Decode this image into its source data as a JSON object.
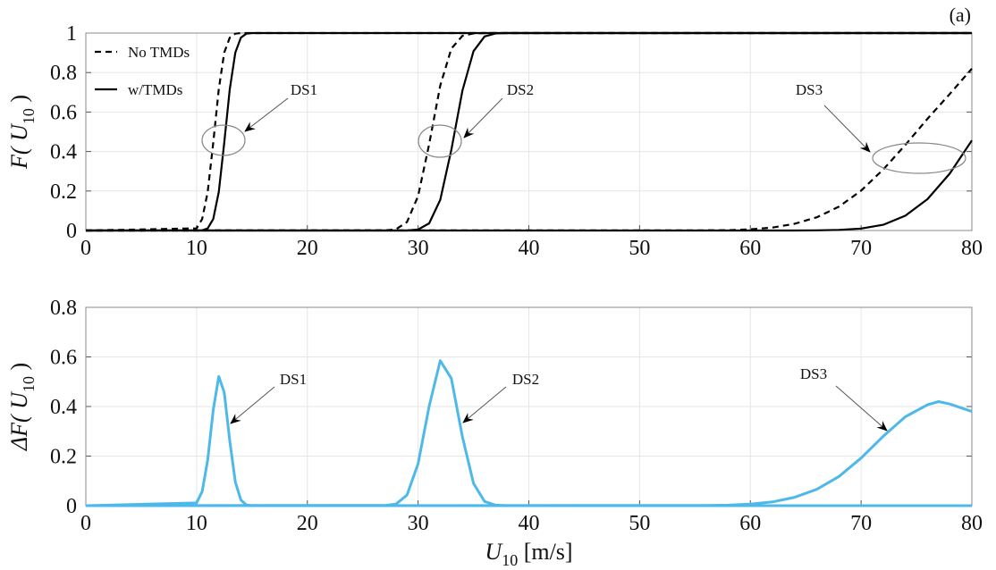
{
  "panel_label": "(a)",
  "chart_data": [
    {
      "type": "line",
      "ylabel": {
        "main": "F( U",
        "sub": "10",
        "end": " )"
      },
      "xlim": [
        0,
        80
      ],
      "ylim": [
        0,
        1
      ],
      "xticks": [
        0,
        10,
        20,
        30,
        40,
        50,
        60,
        70,
        80
      ],
      "yticks": [
        0,
        0.2,
        0.4,
        0.6,
        0.8,
        1
      ],
      "ytick_labels": [
        "0",
        "0.2",
        "0.4",
        "0.6",
        "0.8",
        "1"
      ],
      "grid": true,
      "legend": {
        "placement": "top-left",
        "entries": [
          {
            "label": "No TMDs",
            "style": "dashed"
          },
          {
            "label": "w/TMDs",
            "style": "solid"
          }
        ]
      },
      "line_color": "#000000",
      "series": [
        {
          "name": "No TMDs",
          "group": "DS1",
          "style": "dashed",
          "x": [
            0,
            10,
            10.5,
            11,
            11.5,
            12,
            12.5,
            13,
            13.5,
            14,
            80
          ],
          "y": [
            0,
            0.011,
            0.058,
            0.195,
            0.444,
            0.716,
            0.901,
            0.977,
            0.997,
            1,
            1
          ]
        },
        {
          "name": "w/TMDs",
          "group": "DS1",
          "style": "solid",
          "x": [
            0,
            10.5,
            11,
            11.5,
            12,
            12.5,
            13,
            13.5,
            14,
            14.5,
            15,
            80
          ],
          "y": [
            0,
            0.001,
            0.011,
            0.058,
            0.195,
            0.444,
            0.716,
            0.901,
            0.977,
            0.997,
            1,
            1
          ]
        },
        {
          "name": "No TMDs",
          "group": "DS2",
          "style": "dashed",
          "x": [
            0,
            27,
            28,
            29,
            30,
            31,
            32,
            33,
            34,
            35,
            36,
            80
          ],
          "y": [
            0,
            0.001,
            0.006,
            0.043,
            0.174,
            0.437,
            0.734,
            0.921,
            0.986,
            0.998,
            1,
            1
          ]
        },
        {
          "name": "w/TMDs",
          "group": "DS2",
          "style": "solid",
          "x": [
            0,
            29,
            30,
            31,
            32,
            33,
            34,
            35,
            36,
            37,
            38,
            80
          ],
          "y": [
            0,
            0,
            0.005,
            0.036,
            0.155,
            0.408,
            0.708,
            0.908,
            0.983,
            0.998,
            1,
            1
          ]
        },
        {
          "name": "No TMDs",
          "group": "DS3",
          "style": "dashed",
          "x": [
            0,
            56,
            58,
            60,
            62,
            64,
            66,
            68,
            70,
            72,
            74,
            76,
            78,
            80
          ],
          "y": [
            0,
            0.001,
            0.002,
            0.006,
            0.015,
            0.034,
            0.067,
            0.121,
            0.202,
            0.309,
            0.434,
            0.566,
            0.691,
            0.82
          ]
        },
        {
          "name": "w/TMDs",
          "group": "DS3",
          "style": "solid",
          "x": [
            0,
            64,
            66,
            68,
            70,
            72,
            74,
            76,
            78,
            80
          ],
          "y": [
            0,
            0,
            0.001,
            0.003,
            0.01,
            0.029,
            0.075,
            0.159,
            0.288,
            0.456
          ]
        }
      ],
      "annotations": [
        "DS1",
        "DS2",
        "DS3"
      ]
    },
    {
      "type": "line",
      "xlabel": {
        "main": "U",
        "sub": "10",
        "end": " [m/s]"
      },
      "ylabel": {
        "main": "ΔF( U",
        "sub": "10",
        "end": " )"
      },
      "xlim": [
        0,
        80
      ],
      "ylim": [
        0,
        0.8
      ],
      "xticks": [
        0,
        10,
        20,
        30,
        40,
        50,
        60,
        70,
        80
      ],
      "yticks": [
        0,
        0.2,
        0.4,
        0.6,
        0.8
      ],
      "ytick_labels": [
        "0",
        "0.2",
        "0.4",
        "0.6",
        "0.8"
      ],
      "grid": true,
      "line_color": "#4db8ea",
      "series": [
        {
          "group": "DS1",
          "x": [
            0,
            10,
            10.5,
            11,
            11.5,
            12,
            12.5,
            13,
            13.5,
            14,
            14.5,
            15,
            80
          ],
          "y": [
            0,
            0.011,
            0.057,
            0.184,
            0.386,
            0.521,
            0.457,
            0.261,
            0.096,
            0.023,
            0.003,
            0,
            0
          ]
        },
        {
          "group": "DS2",
          "x": [
            0,
            27,
            28,
            29,
            30,
            31,
            32,
            33,
            34,
            35,
            36,
            37,
            38,
            80
          ],
          "y": [
            0,
            0.001,
            0.006,
            0.043,
            0.169,
            0.401,
            0.585,
            0.513,
            0.278,
            0.09,
            0.017,
            0.002,
            0,
            0
          ]
        },
        {
          "group": "DS3",
          "x": [
            0,
            56,
            58,
            60,
            62,
            64,
            66,
            68,
            70,
            72,
            74,
            76,
            77,
            78,
            80
          ],
          "y": [
            0,
            0.001,
            0.002,
            0.006,
            0.015,
            0.034,
            0.066,
            0.118,
            0.192,
            0.28,
            0.359,
            0.407,
            0.42,
            0.41,
            0.38
          ]
        }
      ],
      "annotations": [
        "DS1",
        "DS2",
        "DS3"
      ]
    }
  ]
}
